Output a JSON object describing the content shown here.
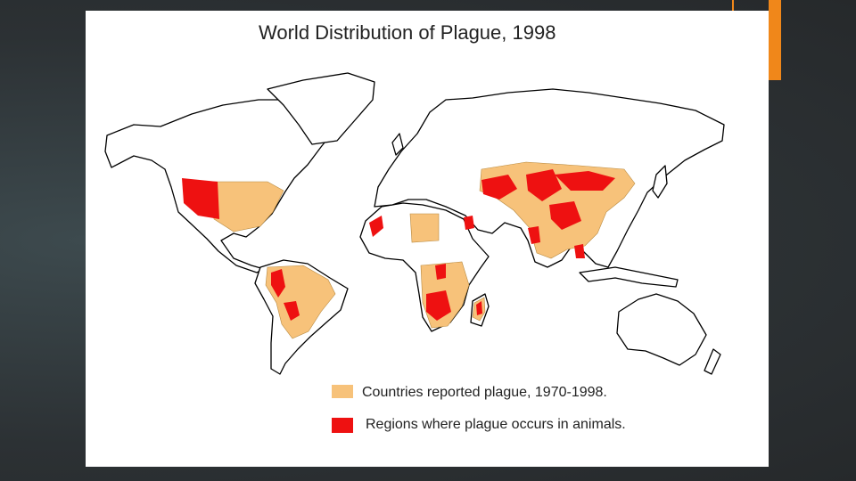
{
  "title": "World Distribution of Plague, 1998",
  "legend": [
    {
      "label": "Countries reported plague, 1970-1998."
    },
    {
      "label": "Regions where plague occurs in animals."
    }
  ]
}
